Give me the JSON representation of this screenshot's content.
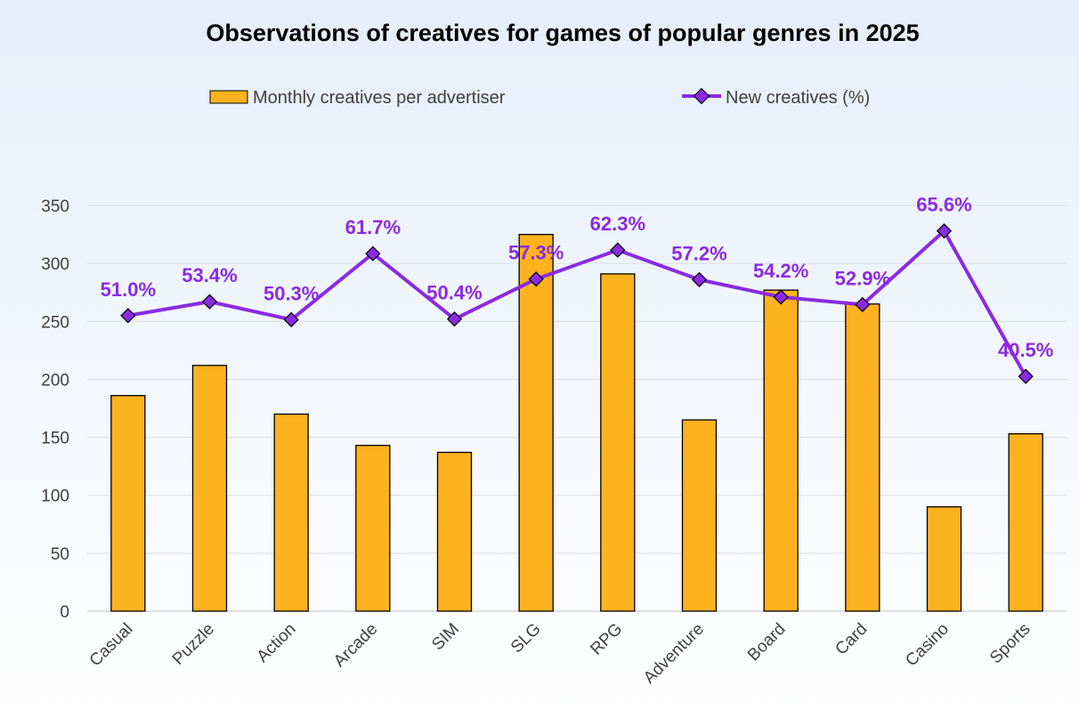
{
  "chart_data": {
    "type": "bar+line",
    "title": "Observations of creatives for games of popular genres in 2025",
    "categories": [
      "Casual",
      "Puzzle",
      "Action",
      "Arcade",
      "SIM",
      "SLG",
      "RPG",
      "Adventure",
      "Board",
      "Card",
      "Casino",
      "Sports"
    ],
    "series": [
      {
        "name": "Monthly creatives per advertiser",
        "type": "bar",
        "axis": "left",
        "color": "#fdb21f",
        "values": [
          186,
          212,
          170,
          143,
          137,
          325,
          291,
          165,
          277,
          265,
          90,
          153
        ]
      },
      {
        "name": "New creatives (%)",
        "type": "line",
        "axis": "right",
        "color": "#8a2be2",
        "values": [
          51.0,
          53.4,
          50.3,
          61.7,
          50.4,
          57.3,
          62.3,
          57.2,
          54.2,
          52.9,
          65.6,
          40.5
        ],
        "labels": [
          "51.0%",
          "53.4%",
          "50.3%",
          "61.7%",
          "50.4%",
          "57.3%",
          "62.3%",
          "57.2%",
          "54.2%",
          "52.9%",
          "65.6%",
          "40.5%"
        ]
      }
    ],
    "ylim": [
      0,
      350
    ],
    "yticks": [
      "0",
      "50",
      "100",
      "150",
      "200",
      "250",
      "300",
      "350"
    ],
    "y2lim": [
      0,
      70
    ],
    "grid": true,
    "legend": "top-center"
  }
}
